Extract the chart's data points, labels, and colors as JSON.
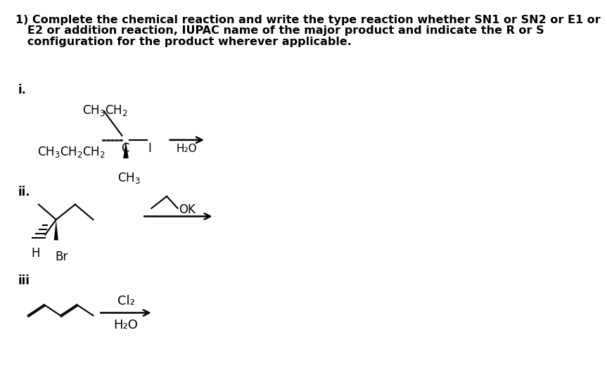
{
  "bg_color": "#ffffff",
  "title_line1": "1) Complete the chemical reaction and write the type reaction whether SN1 or SN2 or E1 or",
  "title_line2": "   E2 or addition reaction, IUPAC name of the major product and indicate the R or S",
  "title_line3": "   configuration for the product wherever applicable.",
  "label_i": "i.",
  "label_ii": "ii.",
  "label_iii": "iii",
  "reaction_i_reagent": "H₂O",
  "reaction_ii_reagent_mol": "OK",
  "reaction_iii_reagent1": "Cl₂",
  "reaction_iii_reagent2": "H₂O",
  "font_title": 11.5,
  "font_label": 12,
  "font_chem": 12
}
